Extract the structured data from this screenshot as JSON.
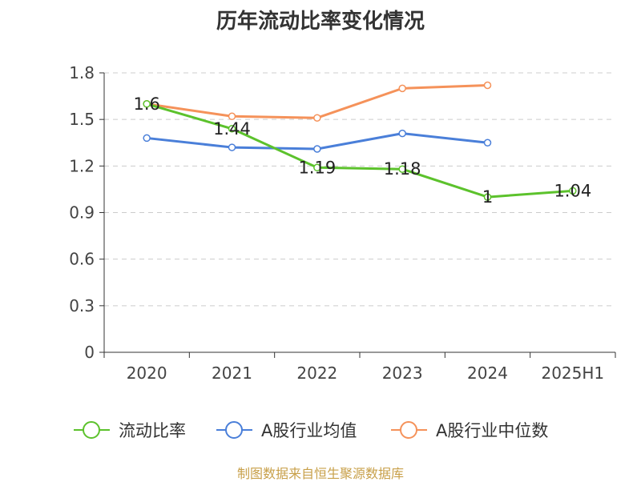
{
  "chart_data": {
    "type": "line",
    "title": "历年流动比率变化情况",
    "categories": [
      "2020",
      "2021",
      "2022",
      "2023",
      "2024",
      "2025H1"
    ],
    "yticks": [
      "0",
      "0.3",
      "0.6",
      "0.9",
      "1.2",
      "1.5",
      "1.8"
    ],
    "ylim": [
      0,
      1.8
    ],
    "grid": true,
    "legend_position": "bottom",
    "series": [
      {
        "name": "流动比率",
        "color": "#5cc22c",
        "values": [
          1.6,
          1.44,
          1.19,
          1.18,
          1.0,
          1.04
        ],
        "labels": [
          "1.6",
          "1.44",
          "1.19",
          "1.18",
          "1",
          "1.04"
        ]
      },
      {
        "name": "A股行业均值",
        "color": "#4a7fd9",
        "values": [
          1.38,
          1.32,
          1.31,
          1.41,
          1.35,
          null
        ]
      },
      {
        "name": "A股行业中位数",
        "color": "#f5925a",
        "values": [
          1.6,
          1.52,
          1.51,
          1.7,
          1.72,
          null
        ]
      }
    ]
  },
  "source": {
    "text": "制图数据来自恒生聚源数据库",
    "color": "#c8a04a"
  }
}
